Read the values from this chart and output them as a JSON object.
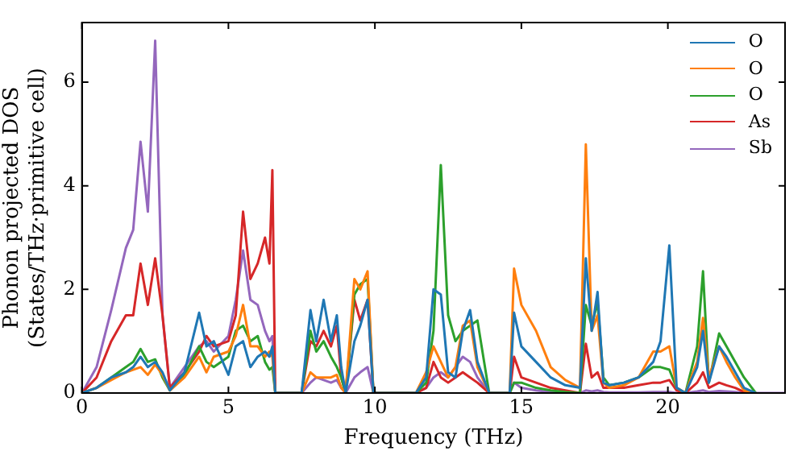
{
  "chart_data": {
    "type": "line",
    "xlabel": "Frequency (THz)",
    "ylabel": "Phonon projected DOS\n(States/THz·primitive cell)",
    "xlim": [
      0,
      24
    ],
    "ylim": [
      0,
      7.15
    ],
    "xticks": [
      0,
      5,
      10,
      15,
      20
    ],
    "yticks": [
      0,
      2,
      4,
      6
    ],
    "grid": false,
    "legend": "top right",
    "x": [
      0,
      0.5,
      1,
      1.5,
      1.75,
      2,
      2.25,
      2.5,
      2.75,
      3,
      3.5,
      4,
      4.25,
      4.5,
      5,
      5.25,
      5.5,
      5.75,
      6,
      6.25,
      6.4,
      6.5,
      6.6,
      7.5,
      7.8,
      8,
      8.25,
      8.5,
      8.7,
      8.85,
      9,
      9.3,
      9.5,
      9.75,
      9.95,
      11.4,
      11.75,
      12,
      12.25,
      12.5,
      12.75,
      13,
      13.25,
      13.5,
      13.9,
      14.6,
      14.75,
      15,
      15.5,
      16,
      16.5,
      17,
      17.2,
      17.4,
      17.6,
      17.8,
      18,
      18.5,
      19,
      19.5,
      19.75,
      20.05,
      20.3,
      20.6,
      21,
      21.2,
      21.4,
      21.75,
      22,
      22.3,
      22.6,
      23,
      24
    ],
    "series": [
      {
        "name": "O",
        "color": "#1f77b4",
        "values": [
          0,
          0.1,
          0.3,
          0.4,
          0.5,
          0.7,
          0.5,
          0.6,
          0.4,
          0.05,
          0.4,
          1.55,
          0.9,
          1.0,
          0.35,
          0.9,
          1.0,
          0.5,
          0.7,
          0.8,
          0.7,
          0.9,
          0,
          0,
          1.6,
          1.0,
          1.8,
          1.0,
          1.5,
          0.5,
          0,
          1.0,
          1.3,
          1.8,
          0,
          0,
          0.3,
          2.0,
          1.9,
          0.4,
          0.3,
          1.2,
          1.6,
          0.6,
          0,
          0,
          1.55,
          0.9,
          0.6,
          0.3,
          0.15,
          0.1,
          2.6,
          1.2,
          1.95,
          0.2,
          0.15,
          0.2,
          0.3,
          0.6,
          1.0,
          2.85,
          0.1,
          0,
          0.5,
          1.2,
          0.2,
          0.9,
          0.7,
          0.4,
          0.1,
          0,
          null
        ]
      },
      {
        "name": "O",
        "color": "#ff7f0e",
        "values": [
          0,
          0.1,
          0.25,
          0.4,
          0.45,
          0.5,
          0.35,
          0.55,
          0.35,
          0.05,
          0.3,
          0.7,
          0.4,
          0.7,
          0.8,
          1.1,
          1.7,
          0.9,
          0.9,
          0.7,
          0.8,
          0.7,
          0,
          0,
          0.4,
          0.3,
          0.3,
          0.3,
          0.35,
          0.1,
          0,
          2.2,
          2.0,
          2.35,
          0,
          0,
          0.4,
          0.9,
          0.6,
          0.3,
          0.5,
          1.3,
          1.4,
          0.5,
          0,
          0,
          2.4,
          1.7,
          1.2,
          0.5,
          0.25,
          0.1,
          4.8,
          1.2,
          1.5,
          0.2,
          0.1,
          0.15,
          0.3,
          0.8,
          0.8,
          0.9,
          0.1,
          0,
          0.6,
          1.45,
          0.3,
          0.9,
          0.6,
          0.3,
          0.05,
          0,
          null
        ]
      },
      {
        "name": "O",
        "color": "#2ca02c",
        "values": [
          0,
          0.1,
          0.3,
          0.5,
          0.6,
          0.85,
          0.6,
          0.65,
          0.3,
          0.05,
          0.35,
          0.9,
          0.6,
          0.5,
          0.7,
          1.2,
          1.3,
          1.0,
          1.1,
          0.6,
          0.45,
          0.5,
          0,
          0,
          1.2,
          0.8,
          1.0,
          0.7,
          0.5,
          0.3,
          0,
          1.9,
          2.1,
          2.2,
          0,
          0,
          0.2,
          1.2,
          4.4,
          1.5,
          1.0,
          1.2,
          1.3,
          1.4,
          0,
          0,
          0.2,
          0.2,
          0.1,
          0.05,
          0.02,
          0,
          1.7,
          1.3,
          1.75,
          0.3,
          0.15,
          0.2,
          0.3,
          0.5,
          0.5,
          0.45,
          0.1,
          0,
          0.9,
          2.35,
          0.2,
          1.15,
          0.9,
          0.6,
          0.3,
          0,
          null
        ]
      },
      {
        "name": "As",
        "color": "#d62728",
        "values": [
          0,
          0.3,
          1.0,
          1.5,
          1.5,
          2.5,
          1.7,
          2.6,
          1.5,
          0.1,
          0.4,
          0.8,
          1.1,
          0.9,
          1.0,
          1.5,
          3.5,
          2.2,
          2.5,
          3.0,
          2.5,
          4.3,
          0,
          0,
          1.0,
          0.9,
          1.2,
          0.9,
          1.3,
          0.3,
          0,
          1.8,
          1.4,
          1.8,
          0,
          0,
          0.1,
          0.6,
          0.3,
          0.2,
          0.3,
          0.4,
          0.3,
          0.2,
          0,
          0,
          0.7,
          0.3,
          0.2,
          0.1,
          0.05,
          0,
          0.95,
          0.3,
          0.4,
          0.1,
          0.1,
          0.1,
          0.15,
          0.2,
          0.2,
          0.25,
          0.05,
          0,
          0.2,
          0.4,
          0.1,
          0.2,
          0.15,
          0.1,
          0.02,
          0,
          null
        ]
      },
      {
        "name": "Sb",
        "color": "#9467bd",
        "values": [
          0,
          0.5,
          1.6,
          2.8,
          3.15,
          4.85,
          3.5,
          6.8,
          1.5,
          0.1,
          0.5,
          0.9,
          1.0,
          0.8,
          1.1,
          1.8,
          2.75,
          1.8,
          1.7,
          1.2,
          1.0,
          1.1,
          0,
          0,
          0.2,
          0.3,
          0.25,
          0.2,
          0.25,
          0.1,
          0,
          0.3,
          0.4,
          0.5,
          0,
          0,
          0.1,
          0.3,
          0.4,
          0.3,
          0.5,
          0.7,
          0.6,
          0.3,
          0,
          0,
          0.2,
          0.1,
          0.05,
          0.02,
          0,
          0,
          0.05,
          0.03,
          0.05,
          0.02,
          0.01,
          0.01,
          0.01,
          0.02,
          0.02,
          0.02,
          0,
          0,
          0.03,
          0.05,
          0.02,
          0.04,
          0.03,
          0.02,
          0,
          0,
          0
        ]
      }
    ]
  }
}
